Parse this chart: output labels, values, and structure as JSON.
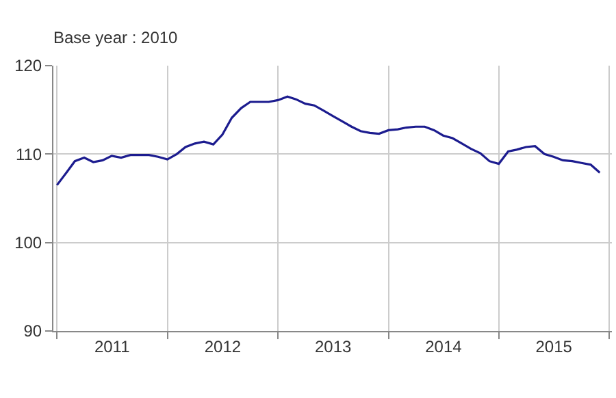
{
  "chart_data": {
    "type": "line",
    "title": "Base year : 2010",
    "x": [
      "2011-01",
      "2011-02",
      "2011-03",
      "2011-04",
      "2011-05",
      "2011-06",
      "2011-07",
      "2011-08",
      "2011-09",
      "2011-10",
      "2011-11",
      "2011-12",
      "2012-01",
      "2012-02",
      "2012-03",
      "2012-04",
      "2012-05",
      "2012-06",
      "2012-07",
      "2012-08",
      "2012-09",
      "2012-10",
      "2012-11",
      "2012-12",
      "2013-01",
      "2013-02",
      "2013-03",
      "2013-04",
      "2013-05",
      "2013-06",
      "2013-07",
      "2013-08",
      "2013-09",
      "2013-10",
      "2013-11",
      "2013-12",
      "2014-01",
      "2014-02",
      "2014-03",
      "2014-04",
      "2014-05",
      "2014-06",
      "2014-07",
      "2014-08",
      "2014-09",
      "2014-10",
      "2014-11",
      "2014-12",
      "2015-01",
      "2015-02",
      "2015-03",
      "2015-04",
      "2015-05",
      "2015-06",
      "2015-07",
      "2015-08",
      "2015-09",
      "2015-10",
      "2015-11",
      "2015-12"
    ],
    "series": [
      {
        "color": "#1c1c8f",
        "values": [
          106.5,
          107.9,
          109.2,
          109.6,
          109.1,
          109.3,
          109.8,
          109.6,
          109.9,
          109.9,
          109.9,
          109.7,
          109.4,
          110.0,
          110.8,
          111.2,
          111.4,
          111.1,
          112.2,
          114.1,
          115.2,
          115.9,
          115.9,
          115.9,
          116.1,
          116.5,
          116.2,
          115.7,
          115.5,
          114.9,
          114.3,
          113.7,
          113.1,
          112.6,
          112.4,
          112.3,
          112.7,
          112.8,
          113.0,
          113.1,
          113.1,
          112.7,
          112.1,
          111.8,
          111.2,
          110.6,
          110.1,
          109.2,
          108.9,
          110.3,
          110.5,
          110.8,
          110.9,
          110.0,
          109.7,
          109.3,
          109.2,
          109.0,
          108.8,
          107.9
        ]
      }
    ],
    "xlim": [
      "2010-12-20",
      "2016-01-10"
    ],
    "xticks": [
      {
        "value": "2011-01-01",
        "label": null
      },
      {
        "value": "2011-07-02",
        "label": "2011"
      },
      {
        "value": "2012-01-01",
        "label": null
      },
      {
        "value": "2012-07-02",
        "label": "2012"
      },
      {
        "value": "2013-01-01",
        "label": null
      },
      {
        "value": "2013-07-02",
        "label": "2013"
      },
      {
        "value": "2014-01-01",
        "label": null
      },
      {
        "value": "2014-07-02",
        "label": "2014"
      },
      {
        "value": "2015-01-01",
        "label": null
      },
      {
        "value": "2015-07-02",
        "label": "2015"
      },
      {
        "value": "2016-01-01",
        "label": null
      }
    ],
    "ylim": [
      90,
      120
    ],
    "yticks": [
      90,
      100,
      110,
      120
    ],
    "grid": true,
    "marker": "none",
    "line_style": "solid"
  }
}
